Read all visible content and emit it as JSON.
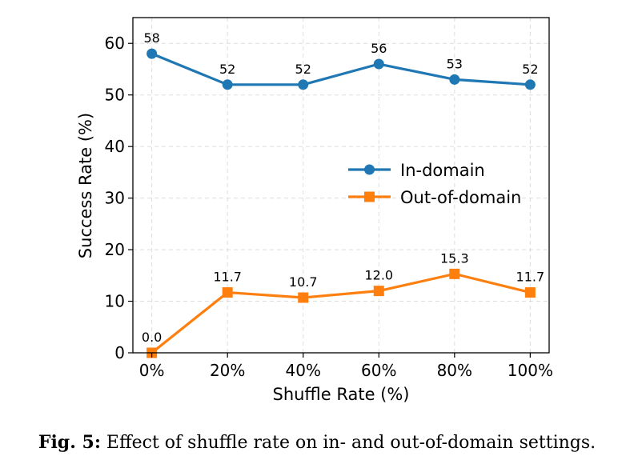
{
  "chart_data": {
    "type": "line",
    "xlabel": "Shuffle Rate (%)",
    "ylabel": "Success Rate (%)",
    "categories": [
      "0%",
      "20%",
      "40%",
      "60%",
      "80%",
      "100%"
    ],
    "x": [
      0,
      20,
      40,
      60,
      80,
      100
    ],
    "ylim": [
      0,
      65
    ],
    "yticks": [
      0,
      10,
      20,
      30,
      40,
      50,
      60
    ],
    "grid": true,
    "legend_position": "center-right",
    "series": [
      {
        "name": "In-domain",
        "values": [
          58,
          52,
          52,
          56,
          53,
          52
        ],
        "labels": [
          "58",
          "52",
          "52",
          "56",
          "53",
          "52"
        ],
        "color": "#1f77b4",
        "marker": "circle"
      },
      {
        "name": "Out-of-domain",
        "values": [
          0.0,
          11.7,
          10.7,
          12.0,
          15.3,
          11.7
        ],
        "labels": [
          "0.0",
          "11.7",
          "10.7",
          "12.0",
          "15.3",
          "11.7"
        ],
        "color": "#ff7f0e",
        "marker": "square"
      }
    ]
  },
  "caption": {
    "label": "Fig. 5:",
    "text": " Effect of shuffle rate on in- and out-of-domain settings."
  }
}
